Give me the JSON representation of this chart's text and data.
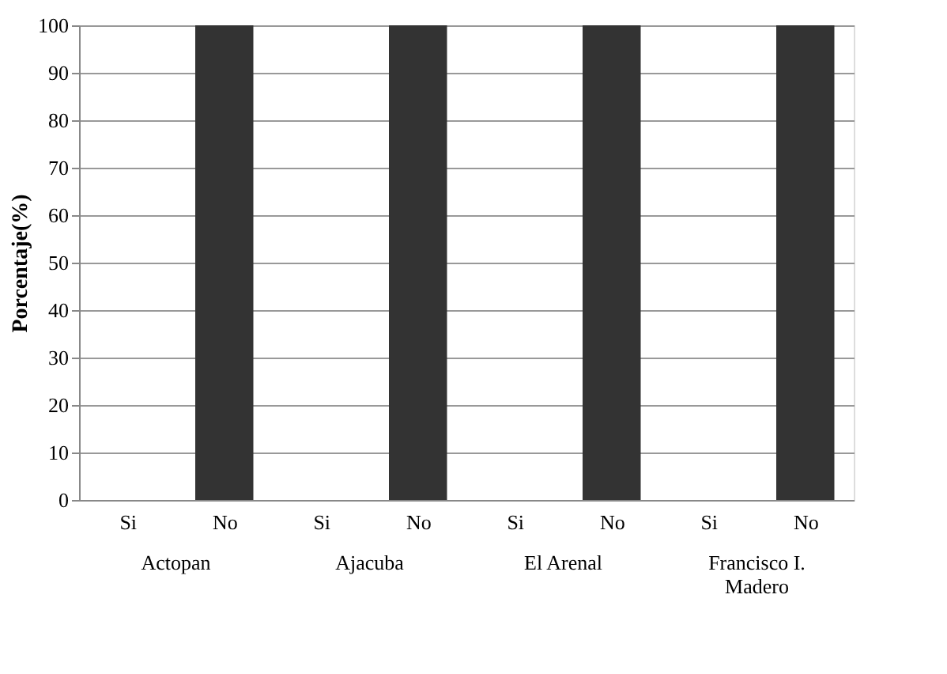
{
  "chart_data": {
    "type": "bar",
    "categories": [
      "Si",
      "No",
      "Si",
      "No",
      "Si",
      "No",
      "Si",
      "No"
    ],
    "values": [
      0,
      100,
      0,
      100,
      0,
      100,
      0,
      100
    ],
    "color": "#333333",
    "ylabel": "Porcentaje(%)",
    "ylim": [
      0,
      100
    ],
    "yticks": [
      0,
      10,
      20,
      30,
      40,
      50,
      60,
      70,
      80,
      90,
      100
    ],
    "grid": "y",
    "annotations": [
      "Actopan",
      "Ajacuba",
      "El Arenal",
      "Francisco I. Madero"
    ]
  }
}
